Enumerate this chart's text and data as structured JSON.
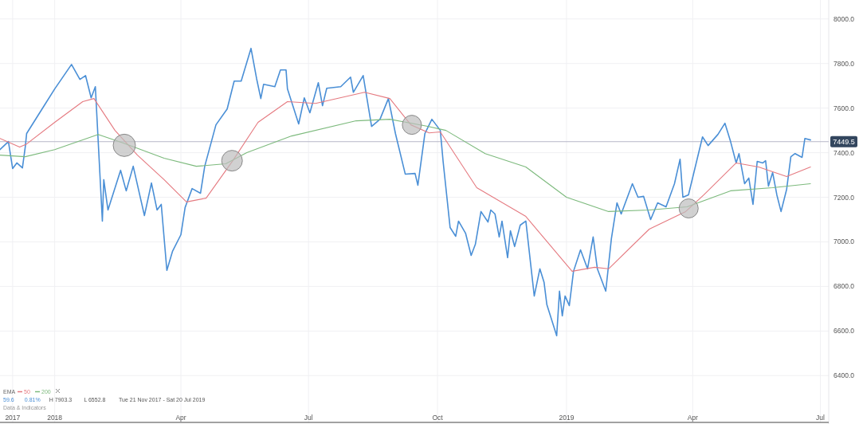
{
  "chart_data": {
    "type": "line",
    "xlim": [
      "2017-11-23",
      "2019-07-07"
    ],
    "ylim": [
      6190,
      8085
    ],
    "xticks": [
      {
        "value": "2017-12-02",
        "label": "2017"
      },
      {
        "value": "2018-01-01",
        "label": "2018"
      },
      {
        "value": "2018-04-01",
        "label": "Apr"
      },
      {
        "value": "2018-07-01",
        "label": "Jul"
      },
      {
        "value": "2018-10-01",
        "label": "Oct"
      },
      {
        "value": "2019-01-01",
        "label": "2019"
      },
      {
        "value": "2019-04-01",
        "label": "Apr"
      },
      {
        "value": "2019-07-01",
        "label": "Jul"
      }
    ],
    "yticks": [
      {
        "value": 6400,
        "label": "6400.0"
      },
      {
        "value": 6600,
        "label": "6600.0"
      },
      {
        "value": 6800,
        "label": "6800.0"
      },
      {
        "value": 7000,
        "label": "7000.0"
      },
      {
        "value": 7200,
        "label": "7200.0"
      },
      {
        "value": 7400,
        "label": "7400.0"
      },
      {
        "value": 7600,
        "label": "7600.0"
      },
      {
        "value": 7800,
        "label": "7800.0"
      },
      {
        "value": 8000,
        "label": "8000.0"
      }
    ],
    "grid": true,
    "legend": "bottom left",
    "legend_title": "EMA",
    "marker": "none",
    "line_style": "solid",
    "ref_lines": [
      {
        "axis": "y",
        "value": 7449.5,
        "label": "7449.5",
        "color": "#b8b8c8"
      }
    ],
    "annotations": [
      "59.6",
      "0.81%",
      "H 7903.3",
      "L 6552.8",
      "Tue 21 Nov 2017 - Sat 20 Jul 2019",
      "Data & Indicators"
    ],
    "series": [
      {
        "color": "#4a8fd6",
        "x": [
          "2017-11-23",
          "2017-11-29",
          "2017-12-02",
          "2017-12-05",
          "2017-12-09",
          "2017-12-11",
          "2017-12-12",
          "2017-12-23",
          "2018-01-01",
          "2018-01-13",
          "2018-01-19",
          "2018-01-23",
          "2018-01-27",
          "2018-01-30",
          "2018-02-04",
          "2018-02-05",
          "2018-02-08",
          "2018-02-17",
          "2018-02-21",
          "2018-02-26",
          "2018-03-06",
          "2018-03-11",
          "2018-03-15",
          "2018-03-18",
          "2018-03-22",
          "2018-03-26",
          "2018-04-01",
          "2018-04-04",
          "2018-04-09",
          "2018-04-15",
          "2018-04-18",
          "2018-04-26",
          "2018-05-04",
          "2018-05-09",
          "2018-05-14",
          "2018-05-21",
          "2018-05-25",
          "2018-05-28",
          "2018-05-30",
          "2018-06-07",
          "2018-06-11",
          "2018-06-15",
          "2018-06-16",
          "2018-06-24",
          "2018-06-28",
          "2018-07-02",
          "2018-07-08",
          "2018-07-11",
          "2018-07-14",
          "2018-07-24",
          "2018-07-31",
          "2018-08-02",
          "2018-08-09",
          "2018-08-15",
          "2018-08-21",
          "2018-08-27",
          "2018-09-01",
          "2018-09-08",
          "2018-09-15",
          "2018-09-17",
          "2018-09-22",
          "2018-09-27",
          "2018-10-03",
          "2018-10-05",
          "2018-10-10",
          "2018-10-14",
          "2018-10-16",
          "2018-10-21",
          "2018-10-25",
          "2018-10-28",
          "2018-11-01",
          "2018-11-06",
          "2018-11-08",
          "2018-11-11",
          "2018-11-14",
          "2018-11-16",
          "2018-11-20",
          "2018-11-22",
          "2018-11-25",
          "2018-11-29",
          "2018-12-03",
          "2018-12-09",
          "2018-12-13",
          "2018-12-16",
          "2018-12-18",
          "2018-12-25",
          "2018-12-27",
          "2018-12-29",
          "2018-12-31",
          "2019-01-03",
          "2019-01-06",
          "2019-01-11",
          "2019-01-16",
          "2019-01-20",
          "2019-01-23",
          "2019-01-29",
          "2019-02-02",
          "2019-02-06",
          "2019-02-09",
          "2019-02-17",
          "2019-02-21",
          "2019-02-25",
          "2019-03-02",
          "2019-03-07",
          "2019-03-13",
          "2019-03-19",
          "2019-03-23",
          "2019-03-25",
          "2019-03-29",
          "2019-04-08",
          "2019-04-12",
          "2019-04-19",
          "2019-04-24",
          "2019-04-28",
          "2019-05-02",
          "2019-05-04",
          "2019-05-08",
          "2019-05-11",
          "2019-05-14",
          "2019-05-17",
          "2019-05-21",
          "2019-05-23",
          "2019-05-25",
          "2019-05-28",
          "2019-05-31",
          "2019-06-03",
          "2019-06-07",
          "2019-06-10",
          "2019-06-13",
          "2019-06-18",
          "2019-06-20",
          "2019-06-24"
        ],
        "values": [
          7414,
          7450,
          7329,
          7354,
          7332,
          7425,
          7486,
          7596,
          7686,
          7796,
          7729,
          7746,
          7646,
          7696,
          7093,
          7279,
          7143,
          7321,
          7229,
          7339,
          7118,
          7264,
          7143,
          7168,
          6872,
          6957,
          7032,
          7154,
          7239,
          7218,
          7339,
          7525,
          7596,
          7721,
          7721,
          7868,
          7732,
          7643,
          7707,
          7696,
          7771,
          7771,
          7686,
          7529,
          7646,
          7579,
          7714,
          7611,
          7689,
          7696,
          7739,
          7671,
          7746,
          7518,
          7550,
          7643,
          7486,
          7304,
          7307,
          7254,
          7486,
          7550,
          7500,
          7361,
          7064,
          7025,
          7093,
          7039,
          6939,
          6989,
          7136,
          7089,
          7143,
          7125,
          7022,
          7093,
          6929,
          7050,
          6979,
          7075,
          7093,
          6757,
          6879,
          6818,
          6718,
          6579,
          6779,
          6668,
          6757,
          6714,
          6868,
          6964,
          6879,
          7022,
          6879,
          6779,
          7014,
          7175,
          7125,
          7261,
          7200,
          7204,
          7100,
          7175,
          7157,
          7261,
          7371,
          7200,
          7211,
          7471,
          7432,
          7482,
          7532,
          7450,
          7354,
          7396,
          7261,
          7286,
          7168,
          7361,
          7354,
          7364,
          7250,
          7311,
          7211,
          7136,
          7236,
          7382,
          7396,
          7379,
          7464,
          7457
        ]
      },
      {
        "name": "50",
        "color": "#e57a80",
        "x": [
          "2017-11-23",
          "2017-12-07",
          "2017-12-12",
          "2018-01-01",
          "2018-01-21",
          "2018-01-29",
          "2018-02-13",
          "2018-03-01",
          "2018-03-20",
          "2018-04-05",
          "2018-04-19",
          "2018-05-08",
          "2018-05-26",
          "2018-06-16",
          "2018-07-06",
          "2018-08-10",
          "2018-08-28",
          "2018-09-12",
          "2018-09-25",
          "2018-10-03",
          "2018-10-29",
          "2018-12-03",
          "2019-01-05",
          "2019-01-21",
          "2019-01-31",
          "2019-03-01",
          "2019-03-27",
          "2019-04-09",
          "2019-05-02",
          "2019-05-18",
          "2019-06-07",
          "2019-06-24"
        ],
        "values": [
          7464,
          7425,
          7439,
          7536,
          7629,
          7643,
          7500,
          7389,
          7279,
          7179,
          7196,
          7364,
          7536,
          7629,
          7621,
          7671,
          7643,
          7525,
          7489,
          7493,
          7243,
          7114,
          6868,
          6886,
          6879,
          7057,
          7136,
          7211,
          7354,
          7336,
          7293,
          7336
        ]
      },
      {
        "name": "200",
        "color": "#7dba7d",
        "x": [
          "2017-11-23",
          "2017-12-11",
          "2018-01-01",
          "2018-02-01",
          "2018-02-19",
          "2018-03-20",
          "2018-04-12",
          "2018-05-03",
          "2018-05-18",
          "2018-06-19",
          "2018-08-04",
          "2018-08-28",
          "2018-09-24",
          "2018-10-07",
          "2018-11-04",
          "2018-12-03",
          "2019-01-01",
          "2019-01-31",
          "2019-03-01",
          "2019-03-28",
          "2019-04-28",
          "2019-05-28",
          "2019-06-24"
        ],
        "values": [
          7389,
          7382,
          7414,
          7482,
          7443,
          7375,
          7339,
          7350,
          7400,
          7475,
          7543,
          7550,
          7518,
          7500,
          7396,
          7336,
          7200,
          7136,
          7143,
          7157,
          7229,
          7243,
          7261
        ]
      }
    ]
  }
}
